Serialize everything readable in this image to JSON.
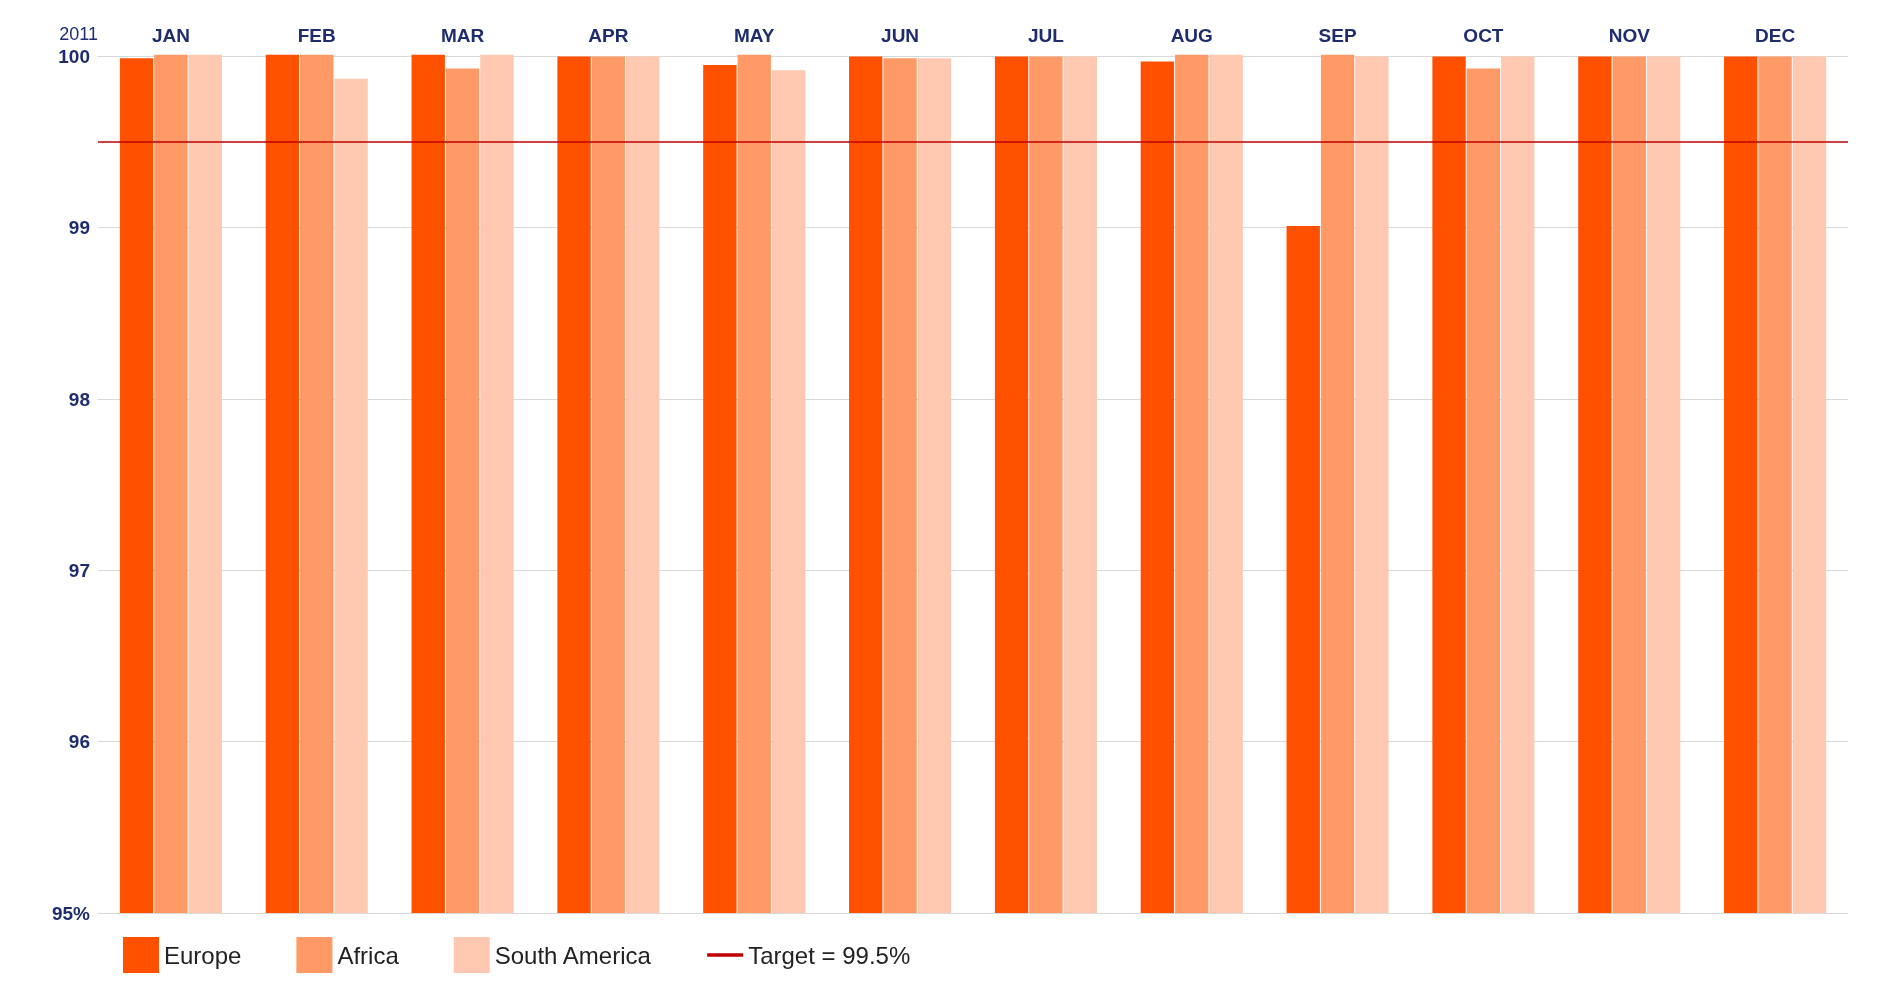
{
  "chart_data": {
    "type": "bar",
    "ylabel": "2011",
    "categories": [
      "JAN",
      "FEB",
      "MAR",
      "APR",
      "MAY",
      "JUN",
      "JUL",
      "AUG",
      "SEP",
      "OCT",
      "NOV",
      "DEC"
    ],
    "series": [
      {
        "name": "Europe",
        "color": "#ff5000",
        "values": [
          99.99,
          100.01,
          100.01,
          100,
          99.95,
          100,
          100,
          99.97,
          99.01,
          100,
          100,
          100
        ]
      },
      {
        "name": "Africa",
        "color": "#ff9966",
        "values": [
          100.01,
          100.01,
          99.93,
          100,
          100.01,
          99.99,
          100,
          100.01,
          100.01,
          99.93,
          100,
          100
        ]
      },
      {
        "name": "South America",
        "color": "#ffc8b0",
        "values": [
          100.01,
          99.87,
          100.01,
          100,
          99.92,
          99.99,
          100,
          100.01,
          100,
          100,
          100,
          100
        ]
      }
    ],
    "ylim": [
      95,
      100.02
    ],
    "yticks": [
      {
        "value": 95,
        "label": "95%"
      },
      96,
      97,
      98,
      99,
      100
    ],
    "grid": "y",
    "legend": "bottom",
    "ref_lines": [
      {
        "axis": "y",
        "value": 99.5,
        "label": "Target = 99.5%",
        "color": "#c00000"
      }
    ]
  }
}
